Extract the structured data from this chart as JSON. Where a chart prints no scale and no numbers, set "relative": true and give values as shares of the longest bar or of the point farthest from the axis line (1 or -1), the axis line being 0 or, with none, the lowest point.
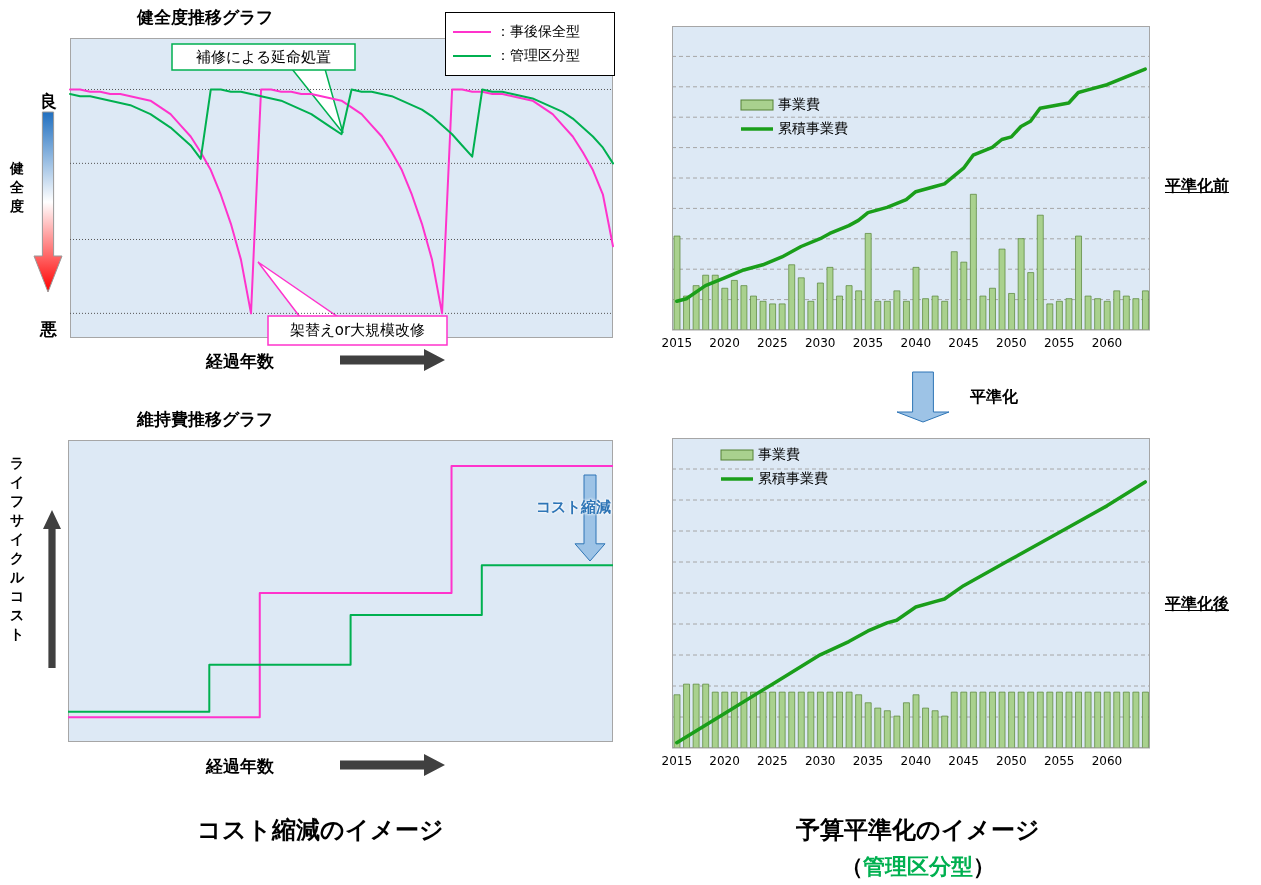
{
  "chart_data": [
    {
      "type": "line",
      "title": "健全度推移グラフ",
      "xlabel": "経過年数",
      "ylabel": "健全度",
      "categories": [
        null,
        null,
        null,
        null,
        null,
        null,
        null,
        null,
        null,
        null,
        null,
        null,
        null,
        null,
        null,
        null,
        null,
        null,
        null,
        null,
        null,
        null,
        null,
        null,
        null,
        null,
        null,
        null,
        null,
        null,
        null,
        null,
        null,
        null,
        null,
        null,
        null,
        null,
        null,
        null,
        null,
        null,
        null,
        null,
        null,
        null,
        null,
        null,
        null,
        null,
        null,
        null,
        null,
        null,
        null
      ],
      "series": [
        {
          "name": "：事後保全型",
          "color": "#ff33cc",
          "values": [
            1.0,
            1.0,
            0.99,
            0.99,
            0.98,
            0.98,
            0.97,
            0.96,
            0.95,
            0.92,
            0.89,
            0.84,
            0.79,
            0.72,
            0.64,
            0.53,
            0.4,
            0.24,
            0,
            1.0,
            1.0,
            0.99,
            0.99,
            0.98,
            0.98,
            0.97,
            0.96,
            0.95,
            0.92,
            0.89,
            0.84,
            0.79,
            0.72,
            0.64,
            0.53,
            0.4,
            0.24,
            0,
            1.0,
            1.0,
            0.99,
            0.99,
            0.98,
            0.98,
            0.97,
            0.96,
            0.95,
            0.92,
            0.89,
            0.84,
            0.79,
            0.72,
            0.64,
            0.53,
            0.3
          ]
        },
        {
          "name": "：管理区分型",
          "color": "#00b050",
          "values": [
            0.98,
            0.97,
            0.97,
            0.96,
            0.95,
            0.94,
            0.93,
            0.91,
            0.89,
            0.86,
            0.83,
            0.79,
            0.75,
            0.69,
            1.0,
            1.0,
            0.99,
            0.99,
            0.98,
            0.97,
            0.96,
            0.95,
            0.93,
            0.91,
            0.89,
            0.86,
            0.83,
            0.8,
            1.0,
            0.99,
            0.99,
            0.98,
            0.97,
            0.95,
            0.93,
            0.91,
            0.88,
            0.84,
            0.8,
            0.75,
            0.7,
            1.0,
            0.99,
            0.99,
            0.98,
            0.97,
            0.96,
            0.94,
            0.92,
            0.9,
            0.87,
            0.83,
            0.79,
            0.74,
            0.67
          ]
        }
      ],
      "relative": true,
      "tick_labels": false,
      "legend": "top right",
      "marker": "none",
      "line_style": "solid",
      "ref_lines": [
        {
          "axis": "y",
          "value": 0,
          "color": "#555555",
          "line_style": "dotted"
        },
        {
          "axis": "y",
          "value": 0.33,
          "color": "#555555",
          "line_style": "dotted"
        },
        {
          "axis": "y",
          "value": 0.67,
          "color": "#555555",
          "line_style": "dotted"
        },
        {
          "axis": "y",
          "value": 1,
          "color": "#555555",
          "line_style": "dotted"
        }
      ],
      "annotations": [
        "補修による延命処置",
        "架替えor大規模改修",
        "良",
        "悪"
      ]
    },
    {
      "type": "bar",
      "x": [
        2015,
        2016,
        2017,
        2018,
        2019,
        2020,
        2021,
        2022,
        2023,
        2024,
        2025,
        2026,
        2027,
        2028,
        2029,
        2030,
        2031,
        2032,
        2033,
        2034,
        2035,
        2036,
        2037,
        2038,
        2039,
        2040,
        2041,
        2042,
        2043,
        2044,
        2045,
        2046,
        2047,
        2048,
        2049,
        2050,
        2051,
        2052,
        2053,
        2054,
        2055,
        2056,
        2057,
        2058,
        2059,
        2060,
        2061,
        2062,
        2063,
        2064
      ],
      "series": [
        {
          "name": "事業費",
          "color": "#a9d18e",
          "values": [
            0.36,
            0.13,
            0.17,
            0.21,
            0.21,
            0.16,
            0.19,
            0.17,
            0.13,
            0.11,
            0.1,
            0.1,
            0.25,
            0.2,
            0.11,
            0.18,
            0.24,
            0.13,
            0.17,
            0.15,
            0.37,
            0.11,
            0.11,
            0.15,
            0.11,
            0.24,
            0.12,
            0.13,
            0.11,
            0.3,
            0.26,
            0.52,
            0.13,
            0.16,
            0.31,
            0.14,
            0.35,
            0.22,
            0.44,
            0.1,
            0.11,
            0.12,
            0.36,
            0.13,
            0.12,
            0.11,
            0.15,
            0.13,
            0.12,
            0.15
          ]
        },
        {
          "name": "累積事業費",
          "type": "line",
          "color": "#1a9e1a",
          "x": [
            2015,
            2016,
            2018,
            2020,
            2022,
            2024,
            2026,
            2028,
            2030,
            2031,
            2033,
            2034,
            2035,
            2037,
            2039,
            2040,
            2042,
            2043,
            2045,
            2046,
            2048,
            2049,
            2050,
            2051,
            2052,
            2053,
            2056,
            2057,
            2058,
            2060,
            2062,
            2064
          ],
          "values": [
            0.11,
            0.12,
            0.17,
            0.2,
            0.23,
            0.25,
            0.28,
            0.32,
            0.35,
            0.37,
            0.4,
            0.42,
            0.45,
            0.47,
            0.5,
            0.53,
            0.55,
            0.56,
            0.62,
            0.67,
            0.7,
            0.73,
            0.74,
            0.78,
            0.8,
            0.85,
            0.87,
            0.91,
            0.92,
            0.94,
            0.97,
            1
          ]
        }
      ],
      "relative": true,
      "xlim": [
        2014.5,
        2064.5
      ],
      "xticks": [
        2015,
        2020,
        2025,
        2030,
        2035,
        2040,
        2045,
        2050,
        2055,
        2060
      ],
      "grid": "y",
      "legend": "top left",
      "marker": "none",
      "annotations": [
        "平準化前",
        "平準化"
      ]
    },
    {
      "type": "step",
      "xlabel": "経過年数",
      "ylabel": "ライフサイクルコスト",
      "title": "維持費推移グラフ",
      "categories": [
        null,
        null,
        null,
        null,
        null,
        null,
        null,
        null,
        null,
        null,
        null,
        null,
        null,
        null,
        null,
        null,
        null,
        null,
        null,
        null,
        null,
        null,
        null,
        null,
        null,
        null,
        null,
        null,
        null,
        null,
        null,
        null,
        null,
        null,
        null,
        null,
        null,
        null,
        null,
        null,
        null,
        null,
        null,
        null,
        null,
        null,
        null,
        null,
        null,
        null,
        null,
        null,
        null,
        null,
        null
      ],
      "series": [
        {
          "color": "#ff33cc",
          "values": [
            0.09,
            0.09,
            0.09,
            0.09,
            0.09,
            0.09,
            0.09,
            0.09,
            0.09,
            0.09,
            0.09,
            0.09,
            0.09,
            0.09,
            0.09,
            0.09,
            0.09,
            0.09,
            0.09,
            0.54,
            0.54,
            0.54,
            0.54,
            0.54,
            0.54,
            0.54,
            0.54,
            0.54,
            0.54,
            0.54,
            0.54,
            0.54,
            0.54,
            0.54,
            0.54,
            0.54,
            0.54,
            0.54,
            1,
            1,
            1,
            1,
            1,
            1,
            1,
            1,
            1,
            1,
            1,
            1,
            1,
            1,
            1,
            1,
            1
          ]
        },
        {
          "color": "#00b050",
          "values": [
            0.11,
            0.11,
            0.11,
            0.11,
            0.11,
            0.11,
            0.11,
            0.11,
            0.11,
            0.11,
            0.11,
            0.11,
            0.11,
            0.11,
            0.28,
            0.28,
            0.28,
            0.28,
            0.28,
            0.28,
            0.28,
            0.28,
            0.28,
            0.28,
            0.28,
            0.28,
            0.28,
            0.28,
            0.46,
            0.46,
            0.46,
            0.46,
            0.46,
            0.46,
            0.46,
            0.46,
            0.46,
            0.46,
            0.46,
            0.46,
            0.46,
            0.64,
            0.64,
            0.64,
            0.64,
            0.64,
            0.64,
            0.64,
            0.64,
            0.64,
            0.64,
            0.64,
            0.64,
            0.64,
            0.64
          ]
        }
      ],
      "relative": true,
      "tick_labels": false,
      "marker": "none",
      "annotations": [
        "コスト縮減",
        "コスト縮減のイメージ"
      ]
    },
    {
      "type": "bar",
      "x": [
        2015,
        2016,
        2017,
        2018,
        2019,
        2020,
        2021,
        2022,
        2023,
        2024,
        2025,
        2026,
        2027,
        2028,
        2029,
        2030,
        2031,
        2032,
        2033,
        2034,
        2035,
        2036,
        2037,
        2038,
        2039,
        2040,
        2041,
        2042,
        2043,
        2044,
        2045,
        2046,
        2047,
        2048,
        2049,
        2050,
        2051,
        2052,
        2053,
        2054,
        2055,
        2056,
        2057,
        2058,
        2059,
        2060,
        2061,
        2062,
        2063,
        2064
      ],
      "series": [
        {
          "name": "事業費",
          "color": "#a9d18e",
          "values": [
            0.2,
            0.24,
            0.24,
            0.24,
            0.21,
            0.21,
            0.21,
            0.21,
            0.21,
            0.21,
            0.21,
            0.21,
            0.21,
            0.21,
            0.21,
            0.21,
            0.21,
            0.21,
            0.21,
            0.2,
            0.17,
            0.15,
            0.14,
            0.12,
            0.17,
            0.2,
            0.15,
            0.14,
            0.12,
            0.21,
            0.21,
            0.21,
            0.21,
            0.21,
            0.21,
            0.21,
            0.21,
            0.21,
            0.21,
            0.21,
            0.21,
            0.21,
            0.21,
            0.21,
            0.21,
            0.21,
            0.21,
            0.21,
            0.21,
            0.21
          ]
        },
        {
          "name": "累積事業費",
          "type": "line",
          "color": "#1a9e1a",
          "x": [
            2015,
            2020,
            2025,
            2030,
            2033,
            2035,
            2037,
            2038,
            2040,
            2042,
            2043,
            2045,
            2050,
            2055,
            2060,
            2064
          ],
          "values": [
            0.02,
            0.13,
            0.24,
            0.35,
            0.4,
            0.44,
            0.47,
            0.48,
            0.53,
            0.55,
            0.56,
            0.61,
            0.71,
            0.81,
            0.91,
            1
          ]
        }
      ],
      "relative": true,
      "xlim": [
        2014.5,
        2064.5
      ],
      "xticks": [
        2015,
        2020,
        2025,
        2030,
        2035,
        2040,
        2045,
        2050,
        2055,
        2060
      ],
      "grid": "y",
      "legend": "top left",
      "marker": "none",
      "annotations": [
        "平準化後",
        "予算平準化のイメージ",
        "（管理区分型）"
      ]
    }
  ]
}
